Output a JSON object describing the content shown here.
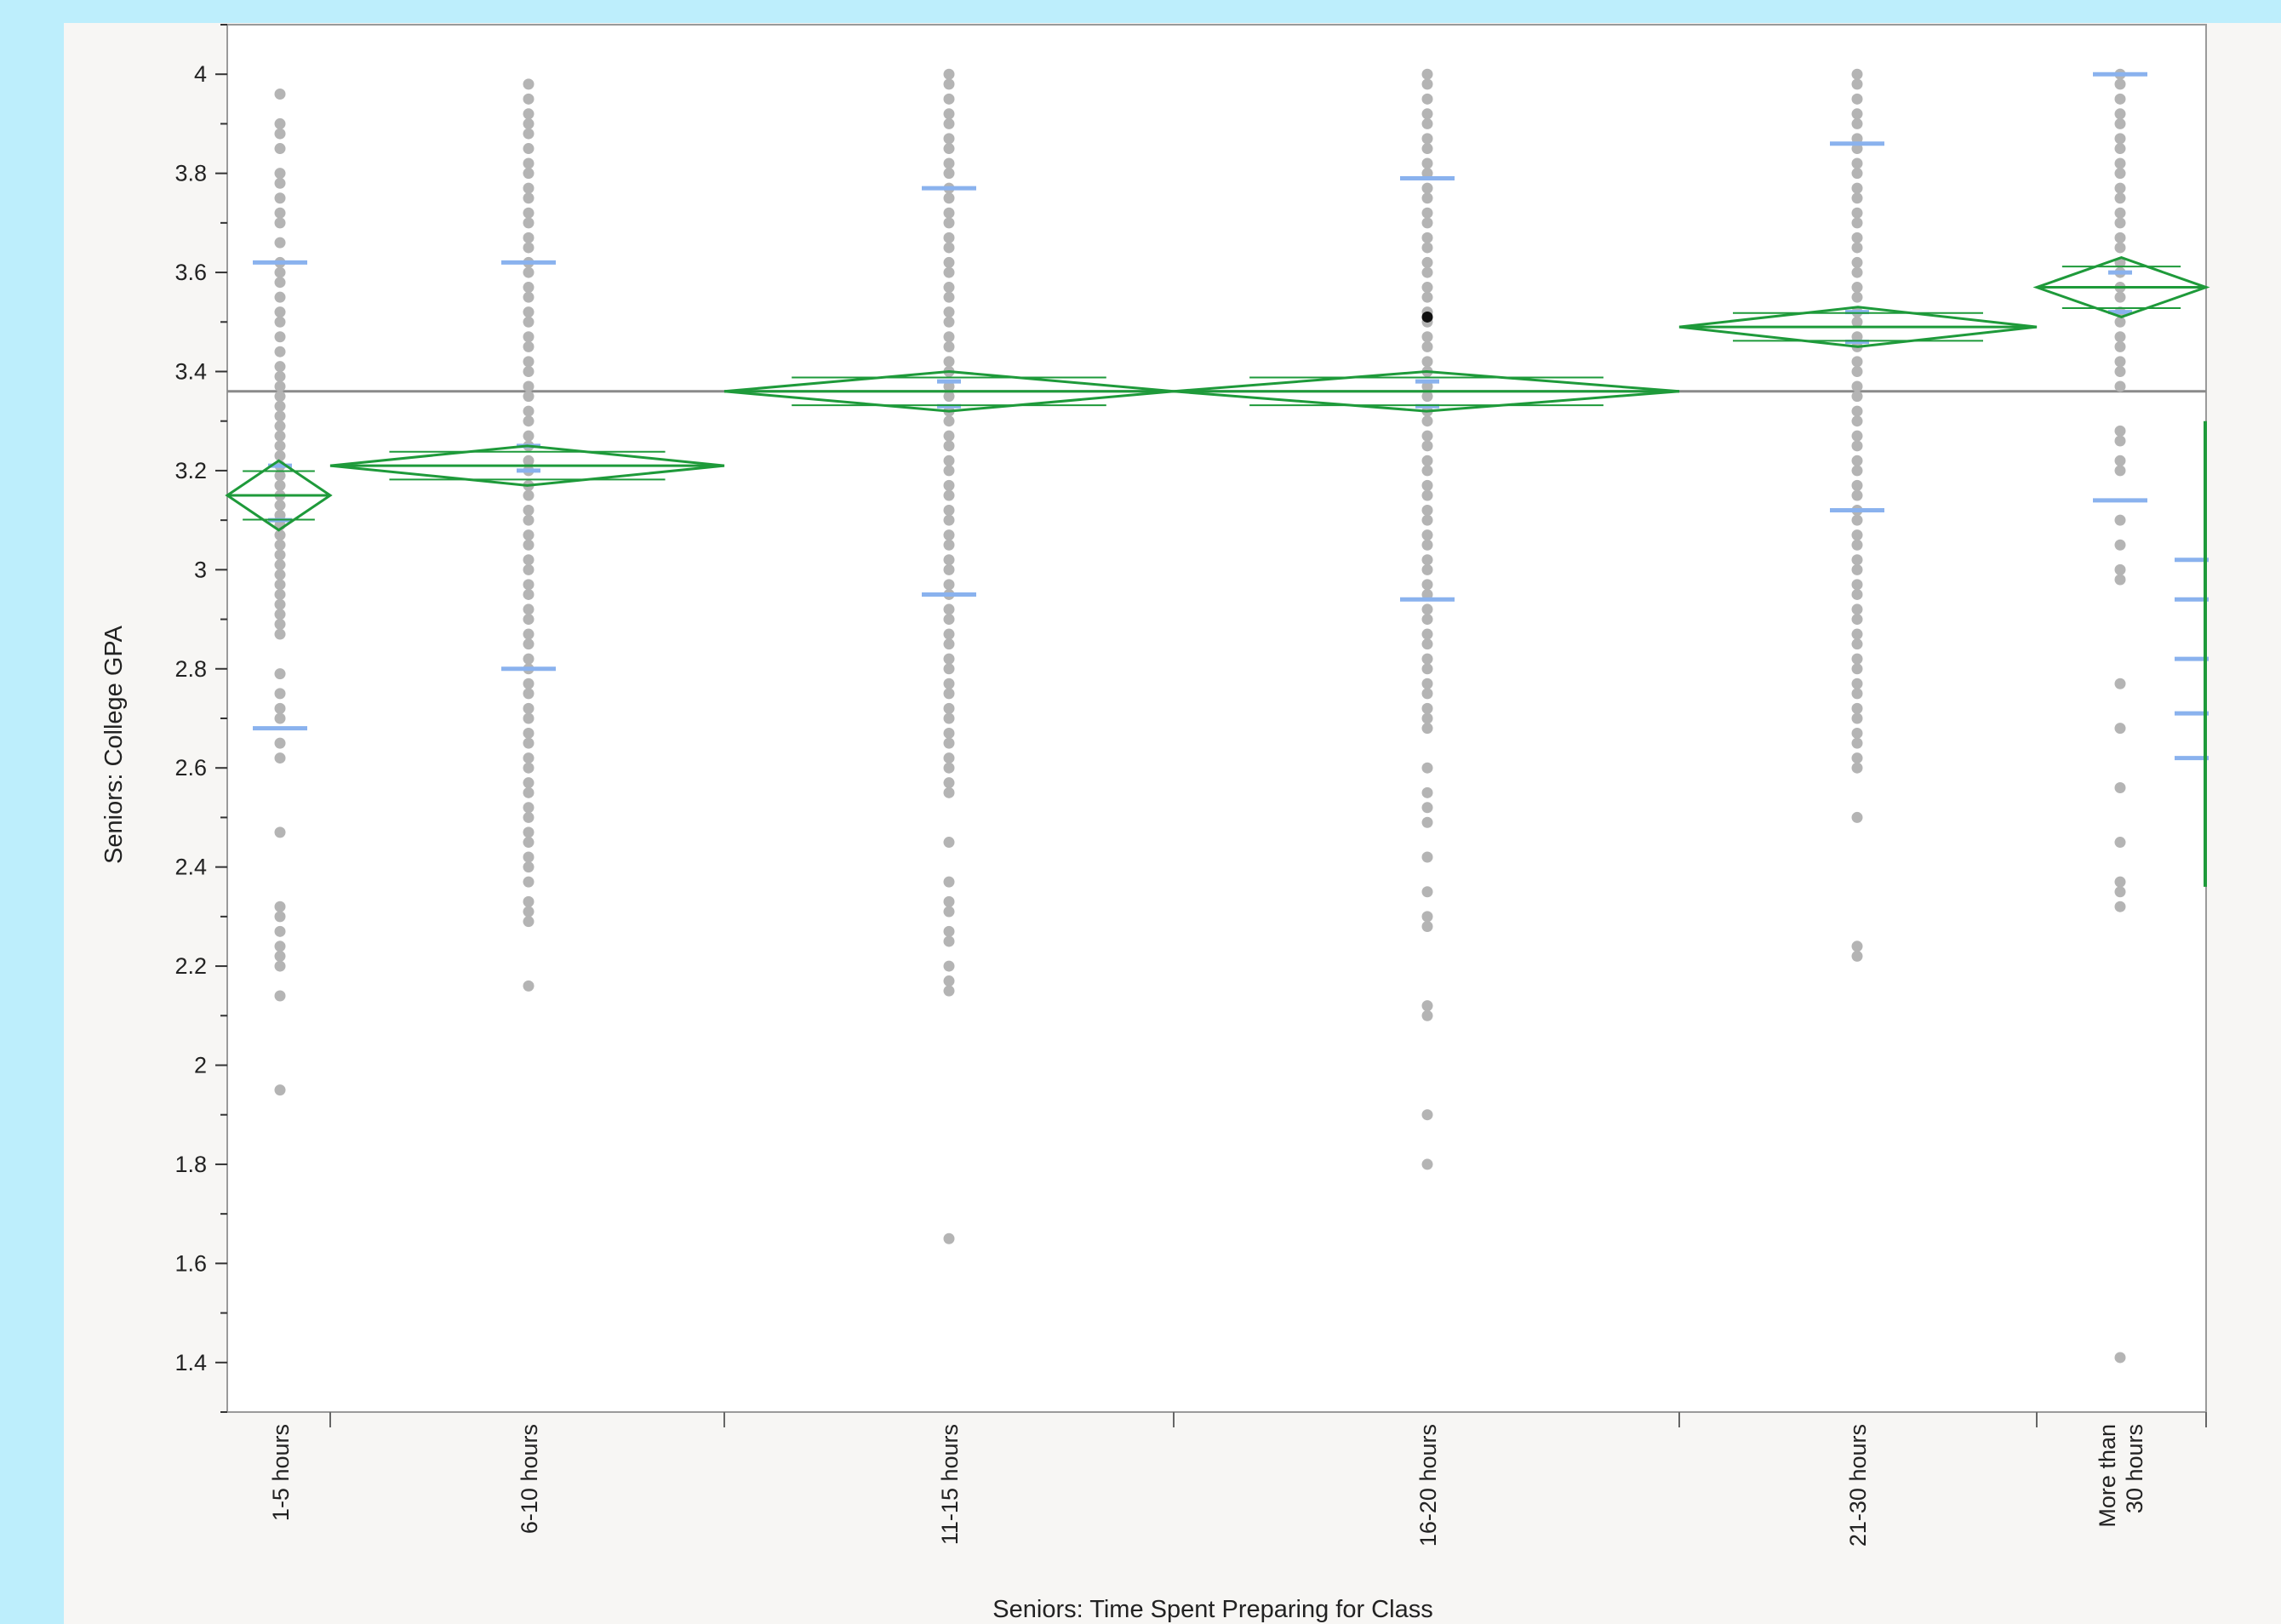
{
  "chart_data": {
    "type": "scatter",
    "subtype": "oneway-means-diamonds",
    "title": "",
    "xlabel": "Seniors: Time Spent Preparing for Class",
    "ylabel": "Seniors: College GPA",
    "ylim": [
      1.3,
      4.1
    ],
    "yticks": [
      1.4,
      1.6,
      1.8,
      2,
      2.2,
      2.4,
      2.6,
      2.8,
      3,
      3.2,
      3.4,
      3.6,
      3.8,
      4
    ],
    "grand_mean": 3.36,
    "grid": false,
    "legend": "none",
    "colors": {
      "points": "#b4b4b4",
      "highlight_point": "#111111",
      "diamond": "#1e9a3a",
      "quantile_marks": "#8ab2ee",
      "grand_mean_line": "#8a8a8a"
    },
    "categories": [
      {
        "label_lines": [
          "1-5 hours"
        ],
        "mean": 3.15,
        "ci": [
          3.08,
          3.22
        ],
        "quantiles": [
          2.68,
          3.1,
          3.21,
          3.62
        ],
        "values": [
          3.96,
          3.9,
          3.88,
          3.85,
          3.8,
          3.78,
          3.75,
          3.72,
          3.7,
          3.66,
          3.62,
          3.6,
          3.58,
          3.55,
          3.52,
          3.5,
          3.47,
          3.44,
          3.41,
          3.39,
          3.37,
          3.35,
          3.33,
          3.31,
          3.29,
          3.27,
          3.25,
          3.23,
          3.21,
          3.19,
          3.17,
          3.15,
          3.13,
          3.11,
          3.09,
          3.07,
          3.05,
          3.03,
          3.01,
          2.99,
          2.97,
          2.95,
          2.93,
          2.91,
          2.89,
          2.87,
          2.79,
          2.75,
          2.72,
          2.7,
          2.65,
          2.62,
          2.47,
          2.32,
          2.3,
          2.27,
          2.24,
          2.22,
          2.2,
          2.14,
          1.95
        ]
      },
      {
        "label_lines": [
          "6-10 hours"
        ],
        "mean": 3.21,
        "ci": [
          3.17,
          3.25
        ],
        "quantiles": [
          2.8,
          3.2,
          3.25,
          3.62
        ],
        "values": [
          3.98,
          3.95,
          3.92,
          3.9,
          3.88,
          3.85,
          3.82,
          3.8,
          3.77,
          3.75,
          3.72,
          3.7,
          3.67,
          3.65,
          3.62,
          3.6,
          3.57,
          3.55,
          3.52,
          3.5,
          3.47,
          3.45,
          3.42,
          3.4,
          3.37,
          3.35,
          3.32,
          3.3,
          3.27,
          3.25,
          3.22,
          3.2,
          3.17,
          3.15,
          3.12,
          3.1,
          3.07,
          3.05,
          3.02,
          3.0,
          2.97,
          2.95,
          2.92,
          2.9,
          2.87,
          2.85,
          2.82,
          2.8,
          2.77,
          2.75,
          2.72,
          2.7,
          2.67,
          2.65,
          2.62,
          2.6,
          2.57,
          2.55,
          2.52,
          2.5,
          2.47,
          2.45,
          2.42,
          2.4,
          2.37,
          2.33,
          2.31,
          2.29,
          2.16
        ]
      },
      {
        "label_lines": [
          "11-15 hours"
        ],
        "mean": 3.36,
        "ci": [
          3.32,
          3.4
        ],
        "quantiles": [
          2.95,
          3.33,
          3.38,
          3.77
        ],
        "values": [
          4.0,
          3.98,
          3.95,
          3.92,
          3.9,
          3.87,
          3.85,
          3.82,
          3.8,
          3.77,
          3.75,
          3.72,
          3.7,
          3.67,
          3.65,
          3.62,
          3.6,
          3.57,
          3.55,
          3.52,
          3.5,
          3.47,
          3.45,
          3.42,
          3.4,
          3.37,
          3.35,
          3.32,
          3.3,
          3.27,
          3.25,
          3.22,
          3.2,
          3.17,
          3.15,
          3.12,
          3.1,
          3.07,
          3.05,
          3.02,
          3.0,
          2.97,
          2.95,
          2.92,
          2.9,
          2.87,
          2.85,
          2.82,
          2.8,
          2.77,
          2.75,
          2.72,
          2.7,
          2.67,
          2.65,
          2.62,
          2.6,
          2.57,
          2.55,
          2.45,
          2.37,
          2.33,
          2.31,
          2.27,
          2.25,
          2.2,
          2.17,
          2.15,
          1.65
        ]
      },
      {
        "label_lines": [
          "16-20 hours"
        ],
        "mean": 3.36,
        "ci": [
          3.32,
          3.4
        ],
        "quantiles": [
          2.94,
          3.33,
          3.38,
          3.79
        ],
        "highlight_value": 3.51,
        "values": [
          4.0,
          3.98,
          3.95,
          3.92,
          3.9,
          3.87,
          3.85,
          3.82,
          3.8,
          3.77,
          3.75,
          3.72,
          3.7,
          3.67,
          3.65,
          3.62,
          3.6,
          3.57,
          3.55,
          3.52,
          3.5,
          3.47,
          3.45,
          3.42,
          3.4,
          3.37,
          3.35,
          3.32,
          3.3,
          3.27,
          3.25,
          3.22,
          3.2,
          3.17,
          3.15,
          3.12,
          3.1,
          3.07,
          3.05,
          3.02,
          3.0,
          2.97,
          2.95,
          2.92,
          2.9,
          2.87,
          2.85,
          2.82,
          2.8,
          2.77,
          2.75,
          2.72,
          2.7,
          2.68,
          2.6,
          2.55,
          2.52,
          2.49,
          2.42,
          2.35,
          2.3,
          2.28,
          2.12,
          2.1,
          1.9,
          1.8
        ]
      },
      {
        "label_lines": [
          "21-30 hours"
        ],
        "mean": 3.49,
        "ci": [
          3.45,
          3.53
        ],
        "quantiles": [
          3.12,
          3.46,
          3.52,
          3.86
        ],
        "values": [
          4.0,
          3.98,
          3.95,
          3.92,
          3.9,
          3.87,
          3.85,
          3.82,
          3.8,
          3.77,
          3.75,
          3.72,
          3.7,
          3.67,
          3.65,
          3.62,
          3.6,
          3.57,
          3.55,
          3.52,
          3.5,
          3.47,
          3.45,
          3.42,
          3.4,
          3.37,
          3.35,
          3.32,
          3.3,
          3.27,
          3.25,
          3.22,
          3.2,
          3.17,
          3.15,
          3.12,
          3.1,
          3.07,
          3.05,
          3.02,
          3.0,
          2.97,
          2.95,
          2.92,
          2.9,
          2.87,
          2.85,
          2.82,
          2.8,
          2.77,
          2.75,
          2.72,
          2.7,
          2.67,
          2.65,
          2.62,
          2.6,
          2.5,
          2.24,
          2.22
        ]
      },
      {
        "label_lines": [
          "More than",
          "30 hours"
        ],
        "mean": 3.57,
        "ci": [
          3.51,
          3.63
        ],
        "quantiles": [
          3.14,
          3.52,
          3.6,
          4.0
        ],
        "values": [
          4.0,
          3.98,
          3.95,
          3.92,
          3.9,
          3.87,
          3.85,
          3.82,
          3.8,
          3.77,
          3.75,
          3.72,
          3.7,
          3.67,
          3.65,
          3.62,
          3.6,
          3.57,
          3.55,
          3.52,
          3.5,
          3.47,
          3.45,
          3.42,
          3.4,
          3.37,
          3.28,
          3.26,
          3.22,
          3.2,
          3.1,
          3.05,
          3.0,
          2.98,
          2.77,
          2.68,
          2.56,
          2.45,
          2.37,
          2.35,
          2.32,
          1.41
        ]
      }
    ],
    "edge_strip": {
      "quantiles": [
        2.62,
        2.71,
        2.82,
        2.94,
        3.02
      ],
      "range": [
        2.36,
        3.3
      ],
      "mean": 2.8
    }
  }
}
